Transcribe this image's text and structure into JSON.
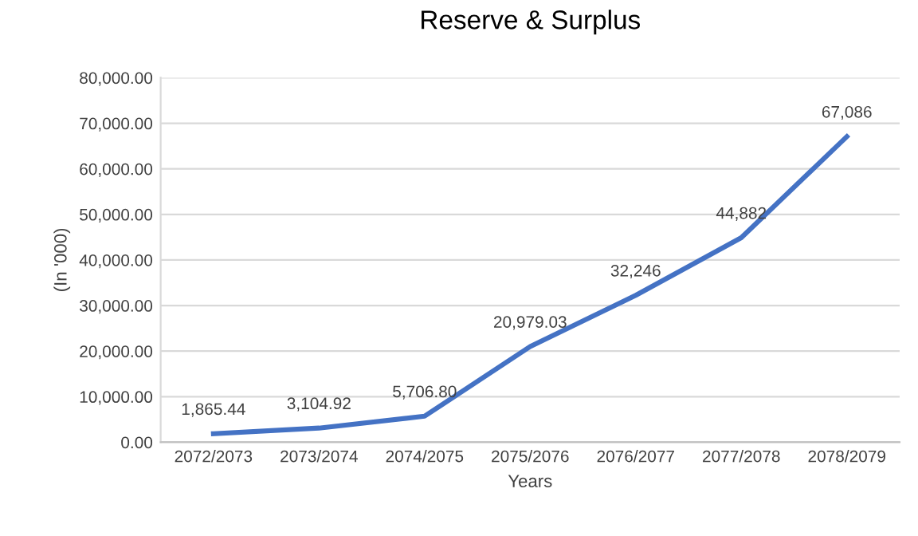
{
  "chart_data": {
    "type": "line",
    "title": "Reserve & Surplus",
    "xlabel": "Years",
    "ylabel": "(In '000)",
    "categories": [
      "2072/2073",
      "2073/2074",
      "2074/2075",
      "2075/2076",
      "2076/2077",
      "2077/2078",
      "2078/2079"
    ],
    "series": [
      {
        "color": "#4472c4",
        "values": [
          1865.44,
          3104.92,
          5706.8,
          20979.03,
          32246,
          44882,
          67086
        ],
        "value_labels": [
          "1,865.44",
          "3,104.92",
          "5,706.80",
          "20,979.03",
          "32,246",
          "44,882",
          "67,086"
        ]
      }
    ],
    "ylim": [
      0,
      80000
    ],
    "yticks": [
      {
        "value": 0,
        "label": "0.00"
      },
      {
        "value": 10000,
        "label": "10,000.00"
      },
      {
        "value": 20000,
        "label": "20,000.00"
      },
      {
        "value": 30000,
        "label": "30,000.00"
      },
      {
        "value": 40000,
        "label": "40,000.00"
      },
      {
        "value": 50000,
        "label": "50,000.00"
      },
      {
        "value": 60000,
        "label": "60,000.00"
      },
      {
        "value": 70000,
        "label": "70,000.00"
      },
      {
        "value": 80000,
        "label": "80,000.00"
      }
    ],
    "grid": "y",
    "marker": "none",
    "line_style": "solid"
  }
}
